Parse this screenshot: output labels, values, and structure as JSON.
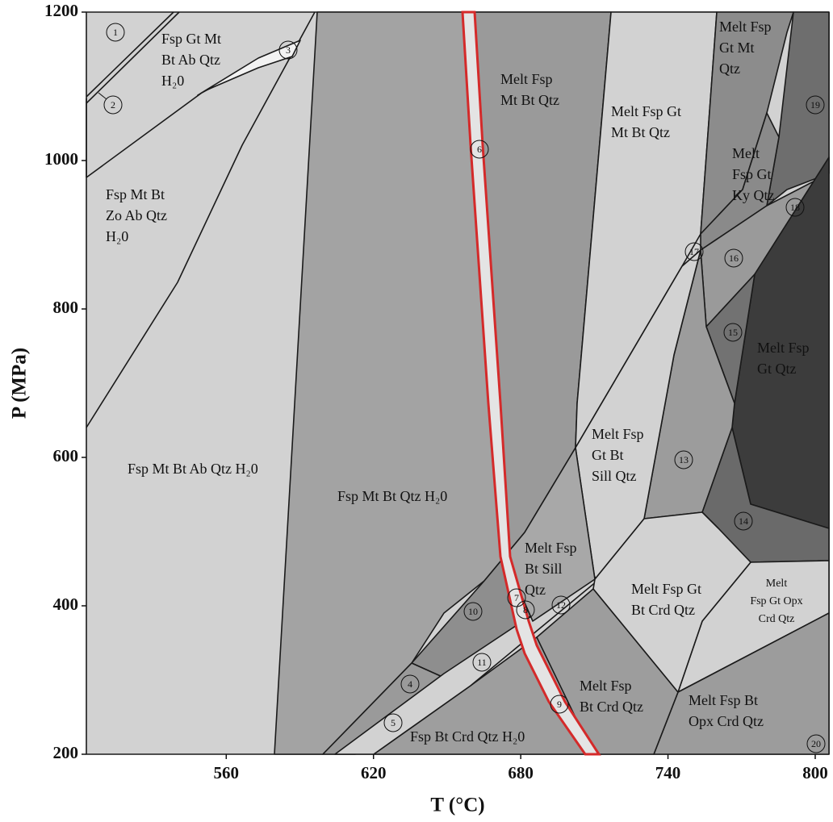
{
  "chart_data": {
    "type": "phase-diagram",
    "xlabel": "T (°C)",
    "ylabel": "P (MPa)",
    "xlim": [
      503,
      805.6
    ],
    "ylim": [
      200,
      1200
    ],
    "xticks": [
      560,
      620,
      680,
      740,
      800
    ],
    "yticks": [
      200,
      400,
      600,
      800,
      1000,
      1200
    ],
    "fields": [
      [
        "Fsp  Gt  Mt",
        "Bt  Ab  Qtz",
        "H₂0"
      ],
      [
        "Fsp Mt  Bt",
        "Zo  Ab  Qtz",
        "H₂0"
      ],
      [
        "Fsp  Mt  Bt  Ab  Qtz  H₂0"
      ],
      [
        "Fsp  Mt  Bt  Qtz  H₂0"
      ],
      [
        "Melt  Fsp",
        "Mt  Bt  Qtz"
      ],
      [
        "Melt  Fsp  Gt",
        "Mt  Bt  Qtz"
      ],
      [
        "Melt Fsp",
        "Gt Mt",
        "Qtz"
      ],
      [
        "Melt",
        "Fsp  Gt",
        "Ky Qtz"
      ],
      [
        "Melt  Fsp",
        "Gt  Qtz"
      ],
      [
        "Melt  Fsp",
        "Gt   Bt",
        "Sill  Qtz"
      ],
      [
        "Melt  Fsp",
        "Bt  Sill",
        "Qtz"
      ],
      [
        "Melt  Fsp  Gt",
        "Bt  Crd  Qtz"
      ],
      [
        "Melt",
        "Fsp  Gt  Opx",
        "Crd  Qtz"
      ],
      [
        "Melt  Fsp",
        "Bt  Crd  Qtz"
      ],
      [
        "Melt  Fsp  Bt",
        "Opx  Crd  Qtz"
      ],
      [
        "Fsp  Bt  Crd  Qtz  H₂0"
      ]
    ],
    "field_numbers": [
      "1",
      "2",
      "3",
      "4",
      "5",
      "6",
      "7",
      "8",
      "9",
      "10",
      "11",
      "12",
      "13",
      "14",
      "15",
      "16",
      "17",
      "18",
      "19",
      "20"
    ]
  }
}
